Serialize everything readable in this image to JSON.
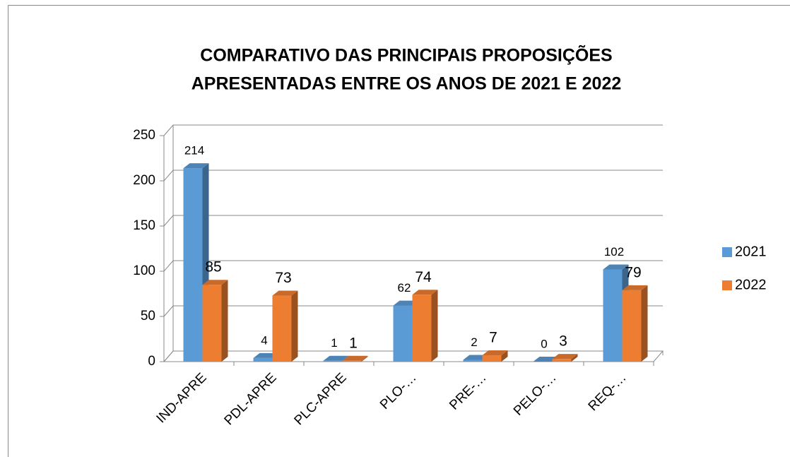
{
  "chart_data": {
    "type": "bar3d",
    "title": [
      "COMPARATIVO DAS PRINCIPAIS PROPOSIÇÕES",
      "APRESENTADAS ENTRE OS ANOS DE 2021 E 2022"
    ],
    "categories": [
      "IND-APRE",
      "PDL-APRE",
      "PLC-APRE",
      "PLO-…",
      "PRE-…",
      "PELO-…",
      "REQ-…"
    ],
    "series": [
      {
        "name": "2021",
        "color": "#5b9bd5",
        "values": [
          214,
          4,
          1,
          62,
          2,
          0,
          102
        ]
      },
      {
        "name": "2022",
        "color": "#ed7d31",
        "values": [
          85,
          73,
          1,
          74,
          7,
          3,
          79
        ]
      }
    ],
    "ylim": [
      0,
      250
    ],
    "yticks": [
      0,
      50,
      100,
      150,
      200,
      250
    ],
    "grid": true,
    "legend": "right"
  }
}
